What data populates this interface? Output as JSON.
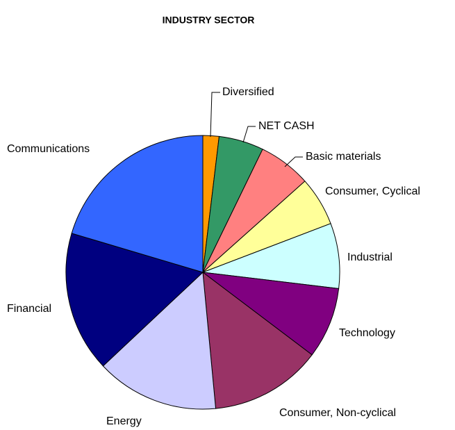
{
  "chart_data": {
    "type": "pie",
    "title": "INDUSTRY SECTOR",
    "categories": [
      "Diversified",
      "NET CASH",
      "Basic materials",
      "Consumer, Cyclical",
      "Industrial",
      "Technology",
      "Consumer, Non-cyclical",
      "Energy",
      "Financial",
      "Communications"
    ],
    "values": [
      1.9,
      5.3,
      6.2,
      5.8,
      7.7,
      8.4,
      13.2,
      14.5,
      16.6,
      20.4
    ],
    "colors": [
      "#FF9900",
      "#339966",
      "#FF8080",
      "#FFFF99",
      "#CCFFFF",
      "#800080",
      "#993366",
      "#CCCCFF",
      "#000080",
      "#3366FF"
    ]
  }
}
